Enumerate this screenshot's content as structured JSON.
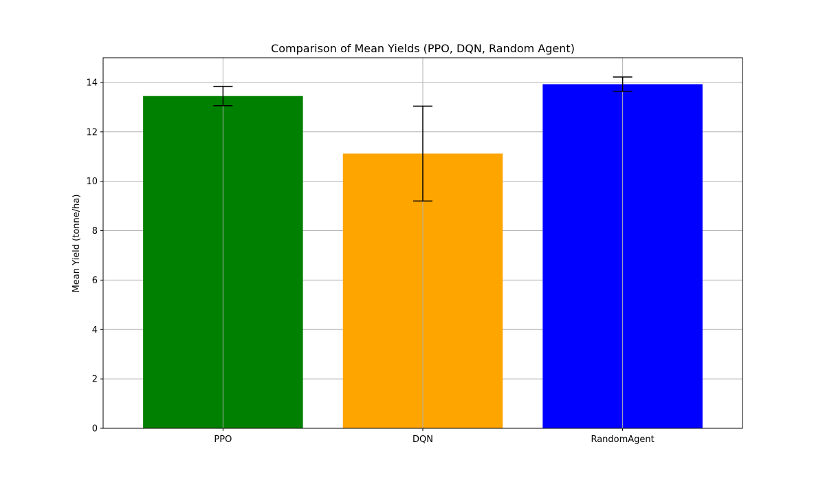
{
  "chart_data": {
    "type": "bar",
    "title": "Comparison of Mean Yields (PPO, DQN, Random Agent)",
    "xlabel": "",
    "ylabel": "Mean Yield (tonne/ha)",
    "categories": [
      "PPO",
      "DQN",
      "RandomAgent"
    ],
    "values": [
      13.45,
      11.12,
      13.93
    ],
    "errors": [
      0.39,
      1.92,
      0.29
    ],
    "colors": [
      "#008000",
      "#ffa500",
      "#0000ff"
    ],
    "ylim": [
      0,
      15
    ],
    "yticks": [
      0,
      2,
      4,
      6,
      8,
      10,
      12,
      14
    ],
    "grid": true,
    "legend": "none"
  }
}
